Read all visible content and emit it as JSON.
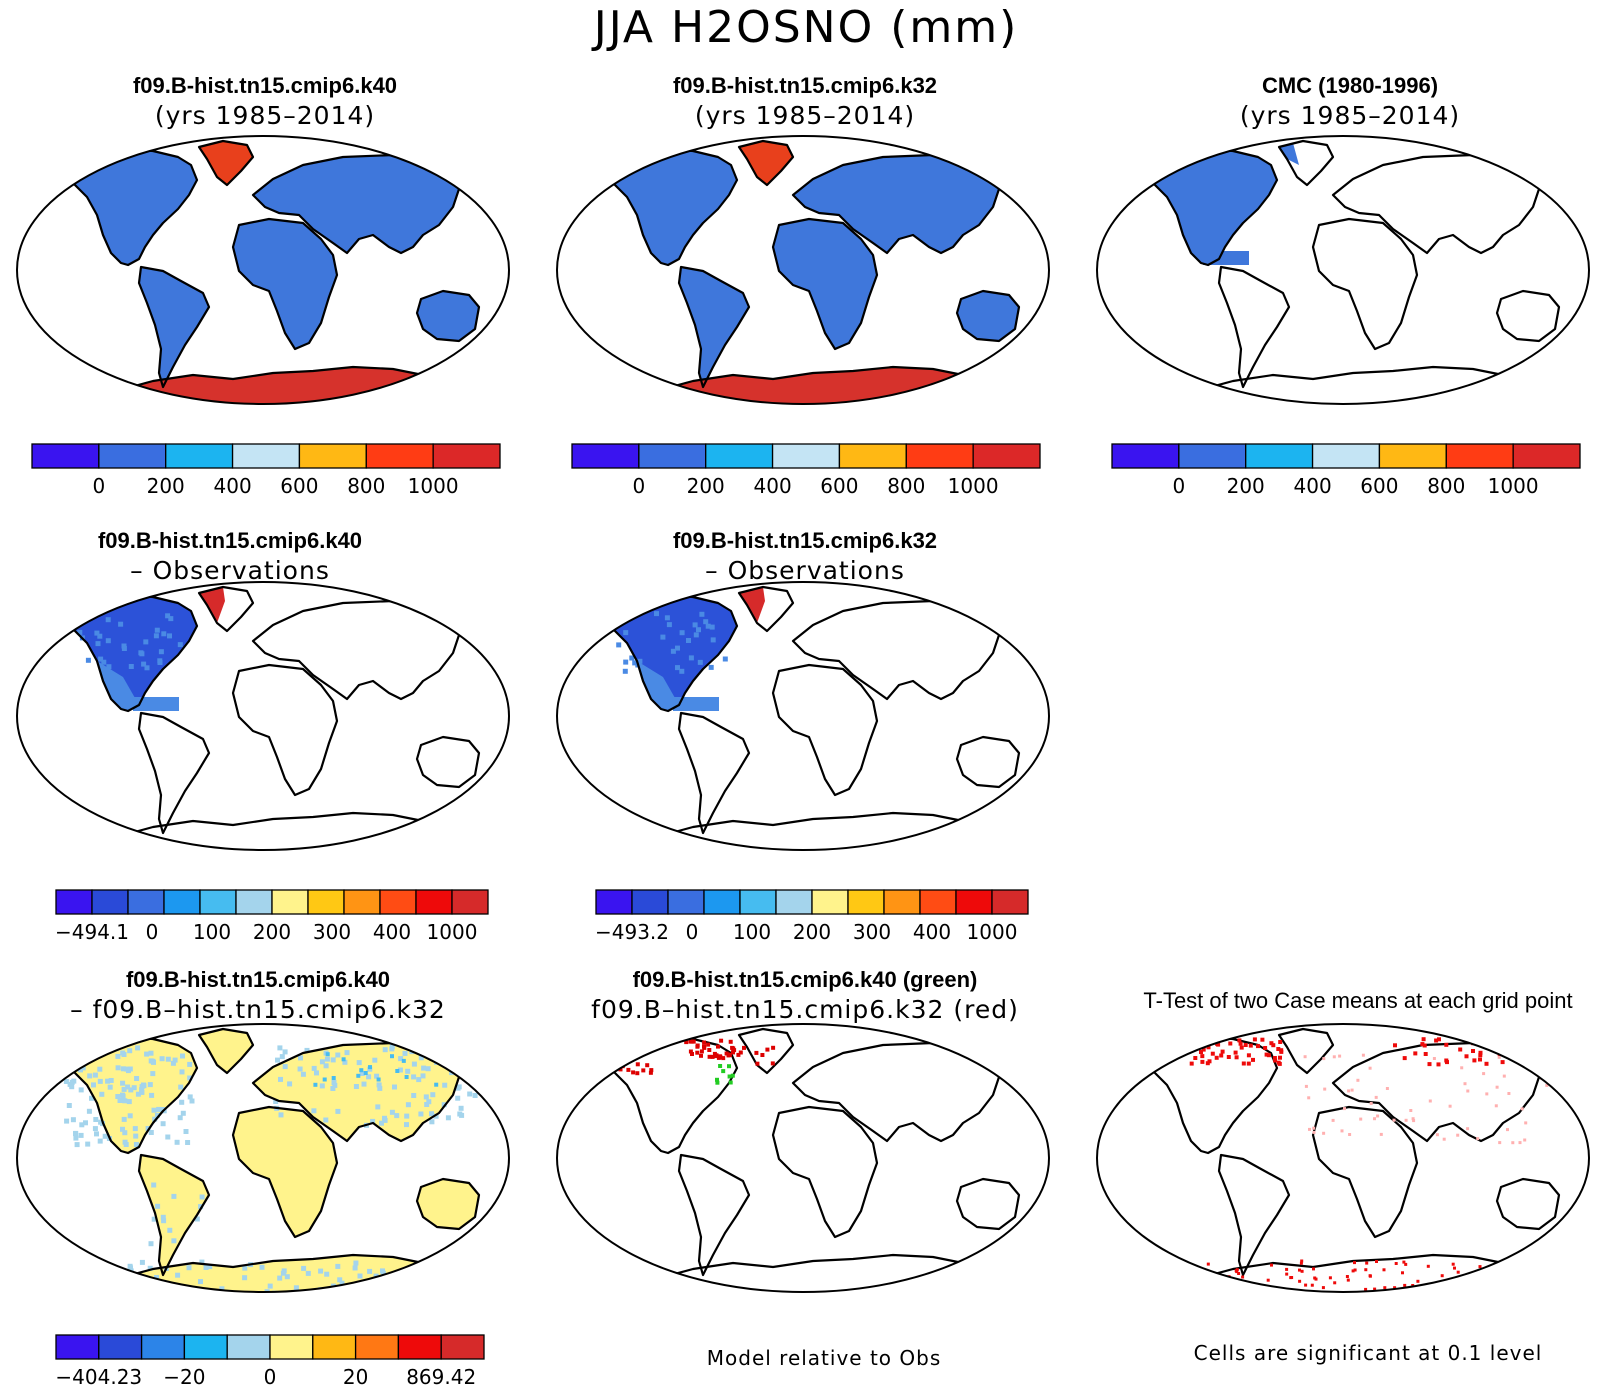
{
  "figure": {
    "title": "JJA H2OSNO (mm)",
    "variable": "H2OSNO",
    "season": "JJA",
    "units": "mm"
  },
  "panels": {
    "p1": {
      "title": "f09.B-hist.tn15.cmip6.k40",
      "subtitle": "(yrs 1985–2014)"
    },
    "p2": {
      "title": "f09.B-hist.tn15.cmip6.k32",
      "subtitle": "(yrs 1985–2014)"
    },
    "p3": {
      "title": "CMC (1980-1996)",
      "subtitle": "(yrs 1985–2014)"
    },
    "p4": {
      "title": "f09.B-hist.tn15.cmip6.k40",
      "subtitle": "– Observations"
    },
    "p5": {
      "title": "f09.B-hist.tn15.cmip6.k32",
      "subtitle": "– Observations"
    },
    "p6": {
      "title": "f09.B-hist.tn15.cmip6.k40",
      "subtitle": "– f09.B–hist.tn15.cmip6.k32"
    },
    "p7": {
      "title": "f09.B-hist.tn15.cmip6.k40 (green)",
      "subtitle": "f09.B–hist.tn15.cmip6.k32 (red)"
    },
    "p8": {
      "title": "T-Test of two Case means at each grid point"
    }
  },
  "notes": {
    "model_relative": "Model relative to Obs",
    "significance": "Cells are significant at 0.1 level"
  },
  "colorbars": {
    "abs": {
      "colors": [
        "#3a14f0",
        "#3a6ee0",
        "#1cb4f0",
        "#c4e4f4",
        "#ffb814",
        "#ff3c14",
        "#dc2828"
      ],
      "labels": [
        "0",
        "200",
        "400",
        "600",
        "800",
        "1000"
      ]
    },
    "diff_k40": {
      "colors": [
        "#3a14f0",
        "#2a4ad8",
        "#3a6ee0",
        "#1c98f0",
        "#46bcf0",
        "#a4d4ec",
        "#fff38c",
        "#ffc814",
        "#ff9414",
        "#ff4c14",
        "#ee0a0a",
        "#d62a2a"
      ],
      "labels": [
        "−494.1",
        "0",
        "100",
        "200",
        "300",
        "400",
        "1000"
      ]
    },
    "diff_k32": {
      "colors": [
        "#3a14f0",
        "#2a4ad8",
        "#3a6ee0",
        "#1c98f0",
        "#46bcf0",
        "#a4d4ec",
        "#fff38c",
        "#ffc814",
        "#ff9414",
        "#ff4c14",
        "#ee0a0a",
        "#d62a2a"
      ],
      "labels": [
        "−493.2",
        "0",
        "100",
        "200",
        "300",
        "400",
        "1000"
      ]
    },
    "case_diff": {
      "colors": [
        "#3a14f0",
        "#2a4ad8",
        "#2c84e8",
        "#1cb4f0",
        "#a4d4ec",
        "#fff38c",
        "#ffb814",
        "#ff7814",
        "#ee0a0a",
        "#d62a2a"
      ],
      "labels": [
        "−404.23",
        "−20",
        "0",
        "20",
        "869.42"
      ]
    }
  },
  "map_colors": {
    "model_land": "#3f77db",
    "greenland_model": "#e8401c",
    "antarctica_model": "#d6322c",
    "obs_land": "#3f77db",
    "obs_greenland": "#3f77db",
    "diff_na": "#2c52d8",
    "diff_na_edge": "#4a8ae4",
    "diff_greenland": "#d62a2a",
    "case_land": "#fff38c",
    "case_cool": "#a4d4ec",
    "case_cool2": "#46bcf0",
    "case_warm": "#ffc814",
    "ttest_red": "#ee0a0a",
    "ttest_pink": "#ffb0b0",
    "sig_green": "#22cc22",
    "sig_red": "#dd0000"
  }
}
